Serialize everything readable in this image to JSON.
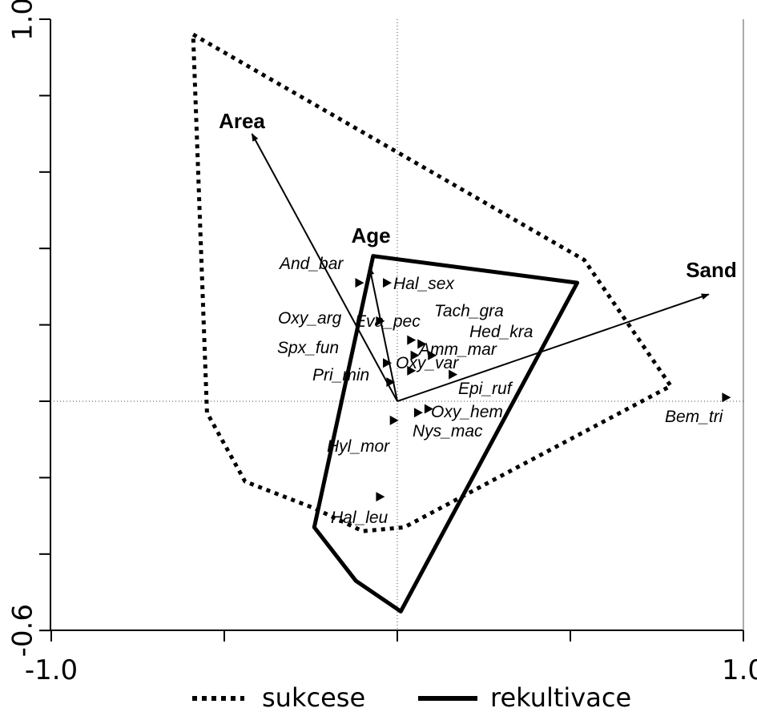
{
  "chart_data": {
    "type": "scatter",
    "title": "",
    "xlabel": "",
    "ylabel": "",
    "xlim": [
      -1.0,
      1.0
    ],
    "ylim": [
      -0.6,
      1.0
    ],
    "x_tick_labels": [
      {
        "v": -1.0,
        "label": "-1.0"
      },
      {
        "v": 1.0,
        "label": "1.0"
      }
    ],
    "y_tick_labels": [
      {
        "v": 1.0,
        "label": "1.0"
      },
      {
        "v": -0.6,
        "label": "-0.6"
      }
    ],
    "x_minor_ticks": [
      -0.5,
      0.0,
      0.5
    ],
    "y_minor_ticks": [
      0.8,
      0.6,
      0.4,
      0.2,
      0.0,
      -0.2,
      -0.4
    ],
    "env_vectors": [
      {
        "name": "Area",
        "x": -0.42,
        "y": 0.7
      },
      {
        "name": "Age",
        "x": -0.08,
        "y": 0.35
      },
      {
        "name": "Sand",
        "x": 0.9,
        "y": 0.28
      }
    ],
    "species": [
      {
        "name": "And_bar",
        "x": -0.11,
        "y": 0.31
      },
      {
        "name": "Hal_sex",
        "x": -0.03,
        "y": 0.31
      },
      {
        "name": "Oxy_arg",
        "x": -0.05,
        "y": 0.21
      },
      {
        "name": "Eva_pec",
        "x": 0.04,
        "y": 0.16
      },
      {
        "name": "Tach_gra",
        "x": 0.07,
        "y": 0.15
      },
      {
        "name": "Hed_kra",
        "x": 0.1,
        "y": 0.12
      },
      {
        "name": "Amm_mar",
        "x": 0.05,
        "y": 0.12
      },
      {
        "name": "Spx_fun",
        "x": -0.03,
        "y": 0.1
      },
      {
        "name": "Oxy_var",
        "x": 0.04,
        "y": 0.08
      },
      {
        "name": "Pri_min",
        "x": -0.02,
        "y": 0.05
      },
      {
        "name": "Epi_ruf",
        "x": 0.16,
        "y": 0.07
      },
      {
        "name": "Oxy_hem",
        "x": 0.09,
        "y": -0.02
      },
      {
        "name": "Nys_mac",
        "x": 0.06,
        "y": -0.03
      },
      {
        "name": "Hyl_mor",
        "x": -0.01,
        "y": -0.05
      },
      {
        "name": "Hal_leu",
        "x": -0.05,
        "y": -0.25
      },
      {
        "name": "Bem_tri",
        "x": 0.95,
        "y": 0.01
      }
    ],
    "hulls": [
      {
        "name": "sukcese",
        "style": "dotted",
        "points": [
          [
            -0.59,
            0.96
          ],
          [
            0.54,
            0.37
          ],
          [
            0.79,
            0.04
          ],
          [
            0.02,
            -0.33
          ],
          [
            -0.1,
            -0.34
          ],
          [
            -0.24,
            -0.28
          ],
          [
            -0.44,
            -0.21
          ],
          [
            -0.55,
            -0.03
          ]
        ]
      },
      {
        "name": "rekultivace",
        "style": "solid",
        "points": [
          [
            -0.07,
            0.38
          ],
          [
            0.52,
            0.31
          ],
          [
            0.01,
            -0.55
          ],
          [
            -0.12,
            -0.47
          ],
          [
            -0.24,
            -0.33
          ]
        ]
      }
    ],
    "legend": {
      "placement": "bottom-center",
      "entries": [
        {
          "label": "sukcese",
          "style": "dotted"
        },
        {
          "label": "rekultivace",
          "style": "solid"
        }
      ]
    },
    "grid": false
  }
}
